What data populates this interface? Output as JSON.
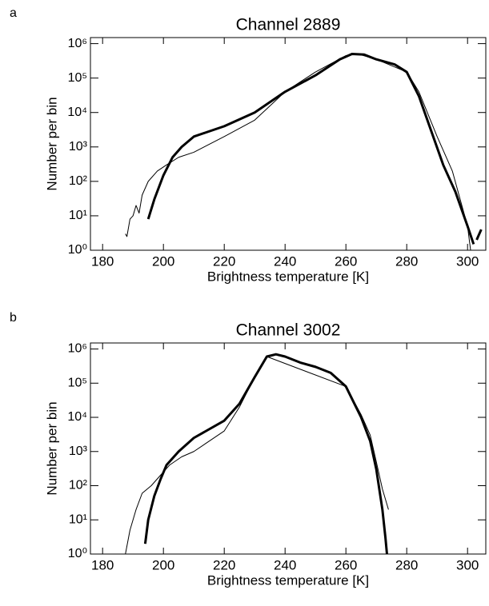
{
  "chart_data": [
    {
      "type": "line",
      "panel_label": "a",
      "title": "Channel 2889",
      "xlabel": "Brightness temperature [K]",
      "ylabel": "Number per bin",
      "ylog": true,
      "xlim": [
        176,
        306
      ],
      "ylim": [
        1,
        1500000
      ],
      "xticks": [
        180,
        200,
        220,
        240,
        260,
        280,
        300
      ],
      "yticks": [
        {
          "value": 1,
          "label": "10⁰"
        },
        {
          "value": 10,
          "label": "10¹"
        },
        {
          "value": 100,
          "label": "10²"
        },
        {
          "value": 1000,
          "label": "10³"
        },
        {
          "value": 10000,
          "label": "10⁴"
        },
        {
          "value": 100000,
          "label": "10⁵"
        },
        {
          "value": 1000000,
          "label": "10⁶"
        }
      ],
      "series": [
        {
          "color": "#000000",
          "linewidth": 3,
          "x": [
            195,
            197,
            200,
            203,
            206,
            210,
            220,
            230,
            240,
            250,
            258,
            262,
            266,
            270,
            276,
            280,
            284,
            288,
            292,
            296,
            300,
            302,
            302.5,
            303,
            304.5
          ],
          "values": [
            8,
            30,
            150,
            500,
            1000,
            2000,
            4000,
            10000,
            40000,
            120000,
            350000,
            500000,
            480000,
            350000,
            250000,
            150000,
            30000,
            3000,
            300,
            50,
            5,
            1.5,
            null,
            2,
            4
          ]
        },
        {
          "color": "#000000",
          "linewidth": 1,
          "x": [
            187.5,
            188,
            189,
            190,
            191,
            192,
            193,
            195,
            198,
            201,
            205,
            210,
            220,
            230,
            240,
            250,
            260,
            264,
            270,
            280,
            284,
            290,
            295,
            300,
            301
          ],
          "values": [
            3,
            2.5,
            8,
            10,
            20,
            12,
            40,
            100,
            200,
            300,
            500,
            700,
            2000,
            6000,
            40000,
            150000,
            450000,
            500000,
            350000,
            150000,
            40000,
            2000,
            200,
            5,
            1
          ]
        }
      ]
    },
    {
      "type": "line",
      "panel_label": "b",
      "title": "Channel 3002",
      "xlabel": "Brightness temperature [K]",
      "ylabel": "Number per bin",
      "ylog": true,
      "xlim": [
        176,
        306
      ],
      "ylim": [
        1,
        1500000
      ],
      "xticks": [
        180,
        200,
        220,
        240,
        260,
        280,
        300
      ],
      "yticks": [
        {
          "value": 1,
          "label": "10⁰"
        },
        {
          "value": 10,
          "label": "10¹"
        },
        {
          "value": 100,
          "label": "10²"
        },
        {
          "value": 1000,
          "label": "10³"
        },
        {
          "value": 10000,
          "label": "10⁴"
        },
        {
          "value": 100000,
          "label": "10⁵"
        },
        {
          "value": 1000000,
          "label": "10⁶"
        }
      ],
      "series": [
        {
          "color": "#000000",
          "linewidth": 3,
          "x": [
            194,
            195,
            197,
            199,
            201,
            205,
            210,
            220,
            225,
            230,
            234,
            237,
            240,
            245,
            250,
            255,
            260,
            265,
            268,
            270,
            272,
            273,
            273.5
          ],
          "values": [
            2,
            10,
            50,
            150,
            400,
            1000,
            2500,
            8000,
            25000,
            150000,
            600000,
            700000,
            600000,
            400000,
            300000,
            200000,
            80000,
            10000,
            2000,
            300,
            20,
            3,
            1
          ]
        },
        {
          "color": "#000000",
          "linewidth": 1,
          "x": [
            187.5,
            189,
            191,
            193,
            196,
            199,
            202,
            206,
            210,
            220,
            225,
            230,
            234,
            260,
            265,
            268,
            270,
            272,
            274
          ],
          "values": [
            1,
            5,
            20,
            60,
            100,
            200,
            400,
            700,
            1000,
            4000,
            20000,
            150000,
            600000,
            80000,
            12000,
            3000,
            500,
            80,
            20
          ]
        }
      ]
    }
  ]
}
